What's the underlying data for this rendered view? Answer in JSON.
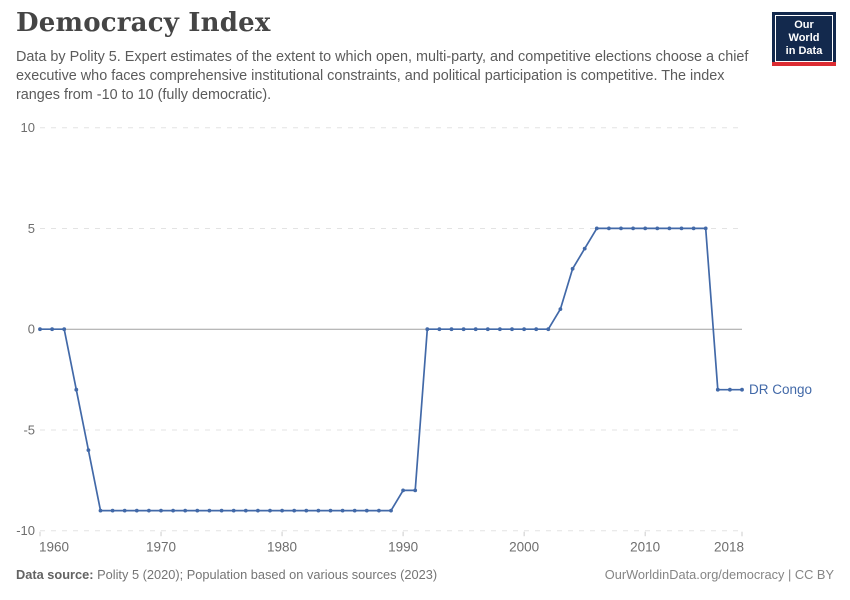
{
  "header": {
    "title": "Democracy Index",
    "subtitle": "Data by Polity 5. Expert estimates of the extent to which open, multi-party, and competitive elections choose a chief executive who faces comprehensive institutional constraints, and political participation is competitive. The index ranges from -10 to 10 (fully democratic).",
    "logo": {
      "line1": "Our World",
      "line2": "in Data"
    }
  },
  "chart_data": {
    "type": "line",
    "title": "Democracy Index",
    "entity": "DR Congo",
    "x": [
      1960,
      1961,
      1962,
      1963,
      1964,
      1965,
      1966,
      1967,
      1968,
      1969,
      1970,
      1971,
      1972,
      1973,
      1974,
      1975,
      1976,
      1977,
      1978,
      1979,
      1980,
      1981,
      1982,
      1983,
      1984,
      1985,
      1986,
      1987,
      1988,
      1989,
      1990,
      1991,
      1992,
      1993,
      1994,
      1995,
      1996,
      1997,
      1998,
      1999,
      2000,
      2001,
      2002,
      2003,
      2004,
      2005,
      2006,
      2007,
      2008,
      2009,
      2010,
      2011,
      2012,
      2013,
      2014,
      2015,
      2016,
      2017,
      2018
    ],
    "series": [
      {
        "name": "DR Congo",
        "color": "#4269a8",
        "values": [
          0,
          0,
          0,
          -3,
          -6,
          -9,
          -9,
          -9,
          -9,
          -9,
          -9,
          -9,
          -9,
          -9,
          -9,
          -9,
          -9,
          -9,
          -9,
          -9,
          -9,
          -9,
          -9,
          -9,
          -9,
          -9,
          -9,
          -9,
          -9,
          -9,
          -8,
          -8,
          0,
          0,
          0,
          0,
          0,
          0,
          0,
          0,
          0,
          0,
          0,
          1,
          3,
          4,
          5,
          5,
          5,
          5,
          5,
          5,
          5,
          5,
          5,
          5,
          -3,
          -3,
          -3
        ]
      }
    ],
    "xlabel": "",
    "ylabel": "",
    "xlim": [
      1960,
      2018
    ],
    "ylim": [
      -10,
      10
    ],
    "xticks": [
      1960,
      1970,
      1980,
      1990,
      2000,
      2010,
      2018
    ],
    "yticks": [
      10,
      5,
      0,
      -5,
      -10
    ],
    "grid": "horizontal-dashed",
    "zero_line": true,
    "legend_position": "end-of-line-label",
    "end_label": "DR Congo"
  },
  "footer": {
    "source_label": "Data source:",
    "source_text": "Polity 5 (2020); Population based on various sources (2023)",
    "credit": "OurWorldinData.org/democracy | CC BY"
  },
  "colors": {
    "series": "#4269a8",
    "grid_line": "#e3e3e3",
    "zero_line": "#a1a1a1",
    "axis_text": "#6e6e6e",
    "tick_mark": "#cccccc",
    "logo_navy": "#13294d",
    "logo_red": "#dc2c32"
  }
}
